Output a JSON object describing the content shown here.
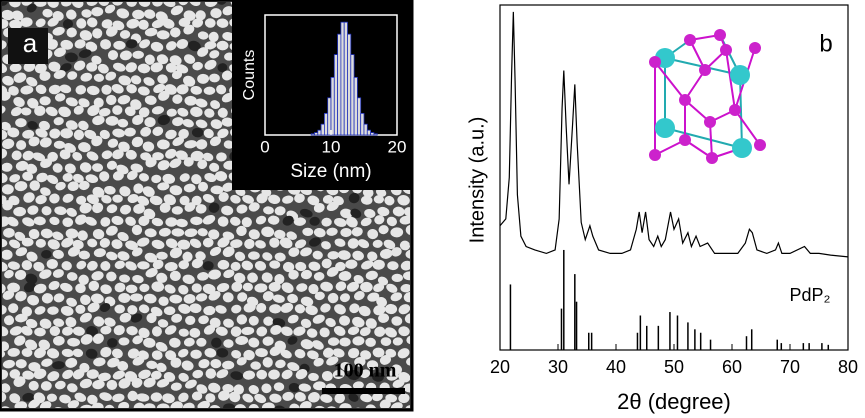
{
  "chart_data": [
    {
      "type": "histogram",
      "panel_label": "a",
      "scale_bar": "100 nm",
      "xlabel": "Size (nm)",
      "ylabel": "Counts",
      "xlim": [
        0,
        20
      ],
      "xticks": [
        0,
        10,
        20
      ],
      "ylim": [
        0,
        100
      ],
      "color": "#dcdcdc",
      "edge_color": "#2233bb",
      "bins": [
        7,
        7.5,
        8,
        8.5,
        9,
        9.5,
        10,
        10.5,
        11,
        11.5,
        12,
        12.5,
        13,
        13.5,
        14,
        14.5,
        15,
        15.5,
        16,
        16.5,
        17
      ],
      "values": [
        1,
        2,
        4,
        9,
        18,
        31,
        48,
        67,
        84,
        94,
        94,
        84,
        67,
        48,
        31,
        18,
        9,
        4,
        2,
        1
      ]
    },
    {
      "type": "line",
      "panel_label": "b",
      "xlabel": "2θ (degree)",
      "ylabel": "Intensity (a.u.)",
      "xlim": [
        20,
        80
      ],
      "xticks": [
        20,
        30,
        40,
        50,
        60,
        70,
        80
      ],
      "ylim": [
        0,
        100
      ],
      "series": [
        {
          "style": "line",
          "color": "#000000",
          "x": [
            20,
            21,
            21.6,
            22,
            22.3,
            22.6,
            23,
            23.6,
            24.5,
            26,
            28,
            29.5,
            30.2,
            30.7,
            31,
            31.4,
            31.9,
            32.5,
            32.9,
            33.3,
            34,
            34.7,
            35.5,
            36,
            37,
            39,
            41,
            42.5,
            43.5,
            44,
            44.5,
            45.1,
            45.7,
            46.5,
            47.2,
            47.8,
            48.5,
            49.4,
            50,
            50.8,
            51.5,
            52.4,
            53,
            53.8,
            54.5,
            55.8,
            57,
            59,
            61,
            62.3,
            63,
            63.5,
            64.3,
            66,
            67.5,
            68,
            68.6,
            70,
            72.5,
            73.5,
            75,
            77,
            80
          ],
          "values": [
            36,
            38,
            50,
            80,
            98,
            78,
            45,
            33,
            30,
            29,
            28,
            29,
            38,
            70,
            81,
            65,
            48,
            65,
            77,
            60,
            37,
            32,
            36,
            33,
            29,
            28,
            28,
            29,
            35,
            40,
            34,
            40,
            32,
            30,
            33,
            30,
            32,
            40,
            35,
            38,
            31,
            34,
            30,
            33,
            30,
            31,
            28,
            28,
            28,
            31,
            35,
            34,
            29,
            28,
            29,
            31,
            28,
            28,
            30,
            28,
            28,
            27.5,
            27
          ]
        },
        {
          "name": "PdP₂",
          "style": "stem",
          "color": "#000000",
          "x": [
            21.8,
            30.6,
            31,
            32.9,
            33.2,
            35.3,
            35.8,
            43.7,
            44.2,
            45.3,
            47.3,
            49.3,
            50.6,
            52.4,
            53.6,
            54.6,
            56.3,
            62.5,
            63.4,
            67.8,
            68.5,
            72.3,
            73.3,
            75.5,
            76.6
          ],
          "values": [
            19,
            12,
            29,
            22,
            14,
            5,
            5,
            5,
            10,
            7,
            7,
            11,
            10,
            8,
            6,
            5,
            3,
            4,
            6,
            3,
            2,
            2,
            2,
            2,
            1.5
          ]
        }
      ]
    }
  ]
}
